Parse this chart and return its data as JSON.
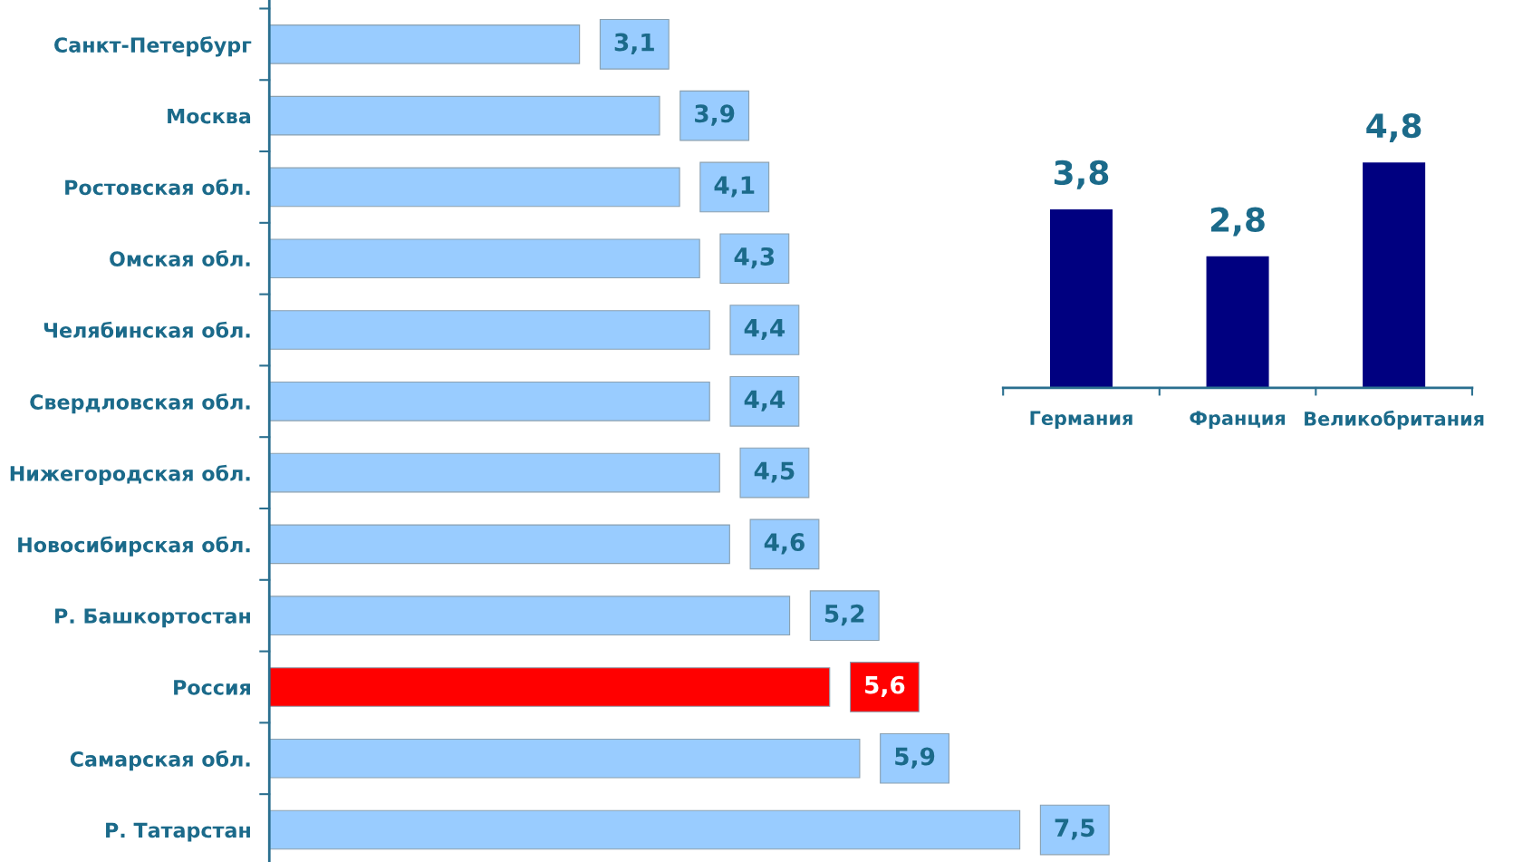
{
  "chart_data": [
    {
      "type": "bar",
      "orientation": "horizontal",
      "categories": [
        "Санкт-Петербург",
        "Москва",
        "Ростовская обл.",
        "Омская обл.",
        "Челябинская обл.",
        "Свердловская обл.",
        "Нижегородская обл.",
        "Новосибирская обл.",
        "Р. Башкортостан",
        "Россия",
        "Самарская обл.",
        "Р. Татарстан"
      ],
      "values": [
        3.1,
        3.9,
        4.1,
        4.3,
        4.4,
        4.4,
        4.5,
        4.6,
        5.2,
        5.6,
        5.9,
        7.5
      ],
      "colors": [
        "#99ccff",
        "#99ccff",
        "#99ccff",
        "#99ccff",
        "#99ccff",
        "#99ccff",
        "#99ccff",
        "#99ccff",
        "#99ccff",
        "#ff0000",
        "#99ccff",
        "#99ccff"
      ],
      "value_labels": [
        "3,1",
        "3,9",
        "4,1",
        "4,3",
        "4,4",
        "4,4",
        "4,5",
        "4,6",
        "5,2",
        "5,6",
        "5,9",
        "7,5"
      ],
      "grid": false,
      "legend": false,
      "tick_labels": "y"
    },
    {
      "type": "bar",
      "categories": [
        "Германия",
        "Франция",
        "Великобритания"
      ],
      "values": [
        3.8,
        2.8,
        4.8
      ],
      "colors": [
        "#000080",
        "#000080",
        "#000080"
      ],
      "value_labels": [
        "3,8",
        "2,8",
        "4,8"
      ],
      "grid": false,
      "legend": false,
      "tick_labels": "x"
    }
  ]
}
